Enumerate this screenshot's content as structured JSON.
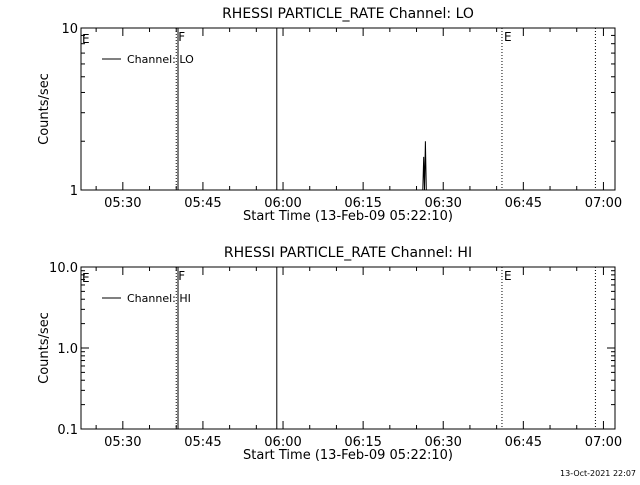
{
  "footer_timestamp": "13-Oct-2021 22:07",
  "chart_data": [
    {
      "type": "line",
      "title": "RHESSI PARTICLE_RATE Channel: LO",
      "xlabel": "Start Time (13-Feb-09 05:22:10)",
      "ylabel": "Counts/sec",
      "y_scale": "log",
      "ylim": [
        1,
        10
      ],
      "xlim": [
        "05:22:10",
        "07:02:10"
      ],
      "x_ticks": [
        "05:30",
        "05:45",
        "06:00",
        "06:15",
        "06:30",
        "06:45",
        "07:00"
      ],
      "y_ticks": [
        "1",
        "10"
      ],
      "legend": {
        "position": "top-left",
        "entries": [
          "Channel: LO"
        ]
      },
      "markers": [
        {
          "time": "05:40:00",
          "label": "F",
          "style": "dotted"
        },
        {
          "time": "05:40:20",
          "label": "",
          "style": "solid"
        },
        {
          "time": "05:58:50",
          "label": "",
          "style": "solid"
        },
        {
          "time": "06:41:00",
          "label": "E",
          "style": "dotted"
        },
        {
          "time": "06:58:30",
          "label": "",
          "style": "dotted"
        }
      ],
      "left_edge_label": "E",
      "series": [
        {
          "name": "Channel: LO",
          "points": [
            [
              "06:26:10",
              1.0
            ],
            [
              "06:26:20",
              1.6
            ],
            [
              "06:26:30",
              1.0
            ],
            [
              "06:26:40",
              2.0
            ],
            [
              "06:26:50",
              1.0
            ]
          ]
        }
      ]
    },
    {
      "type": "line",
      "title": "RHESSI PARTICLE_RATE Channel: HI",
      "xlabel": "Start Time (13-Feb-09 05:22:10)",
      "ylabel": "Counts/sec",
      "y_scale": "log",
      "ylim": [
        0.1,
        10
      ],
      "xlim": [
        "05:22:10",
        "07:02:10"
      ],
      "x_ticks": [
        "05:30",
        "05:45",
        "06:00",
        "06:15",
        "06:30",
        "06:45",
        "07:00"
      ],
      "y_ticks": [
        "0.1",
        "1.0",
        "10.0"
      ],
      "legend": {
        "position": "top-left",
        "entries": [
          "Channel: HI"
        ]
      },
      "markers": [
        {
          "time": "05:40:00",
          "label": "F",
          "style": "dotted"
        },
        {
          "time": "05:40:20",
          "label": "",
          "style": "solid"
        },
        {
          "time": "05:58:50",
          "label": "",
          "style": "solid"
        },
        {
          "time": "06:41:00",
          "label": "E",
          "style": "dotted"
        },
        {
          "time": "06:58:30",
          "label": "",
          "style": "dotted"
        }
      ],
      "left_edge_label": "E",
      "series": [
        {
          "name": "Channel: HI",
          "points": []
        }
      ]
    }
  ]
}
